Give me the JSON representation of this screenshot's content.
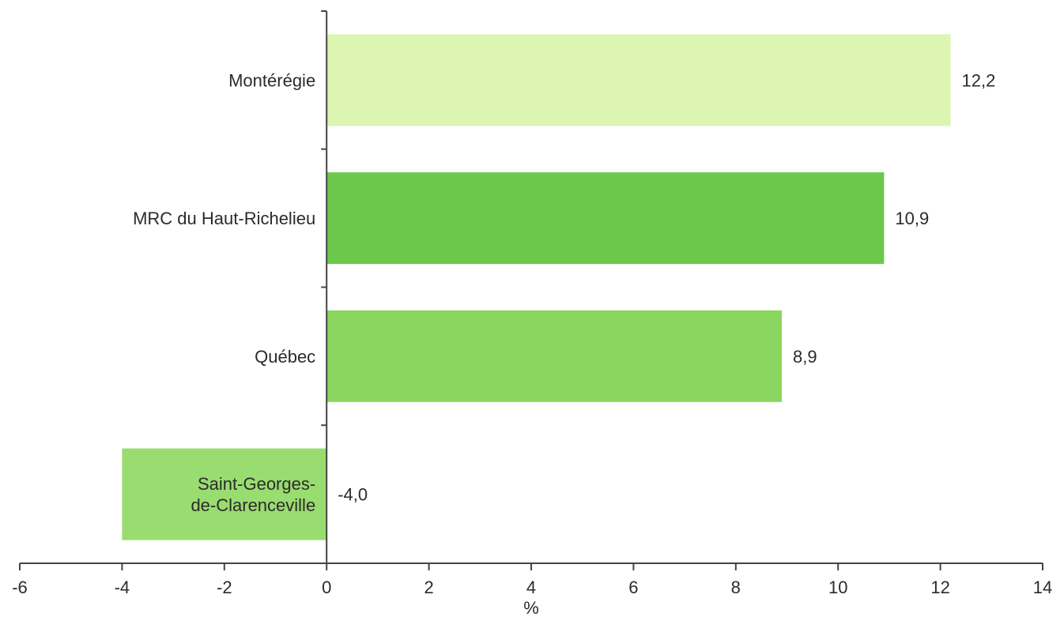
{
  "chart_data": {
    "type": "bar",
    "orientation": "horizontal",
    "categories": [
      "Montérégie",
      "MRC du Haut-Richelieu",
      "Québec",
      "Saint-Georges-de-Clarenceville"
    ],
    "category_label_lines": [
      [
        "Montérégie"
      ],
      [
        "MRC du Haut-Richelieu"
      ],
      [
        "Québec"
      ],
      [
        "Saint-Georges-",
        "de-Clarenceville"
      ]
    ],
    "values": [
      12.2,
      10.9,
      8.9,
      -4.0
    ],
    "value_labels": [
      "12,2",
      "10,9",
      "8,9",
      "-4,0"
    ],
    "colors": [
      "#dcf5b0",
      "#6cc84a",
      "#8bd65e",
      "#99dc70"
    ],
    "title": "",
    "xlabel": "%",
    "ylabel": "",
    "xlim": [
      -6,
      14
    ],
    "xticks": [
      -6,
      -4,
      -2,
      0,
      2,
      4,
      6,
      8,
      10,
      12,
      14
    ],
    "xtick_labels": [
      "-6",
      "-4",
      "-2",
      "0",
      "2",
      "4",
      "6",
      "8",
      "10",
      "12",
      "14"
    ],
    "grid": false,
    "legend": "none"
  }
}
